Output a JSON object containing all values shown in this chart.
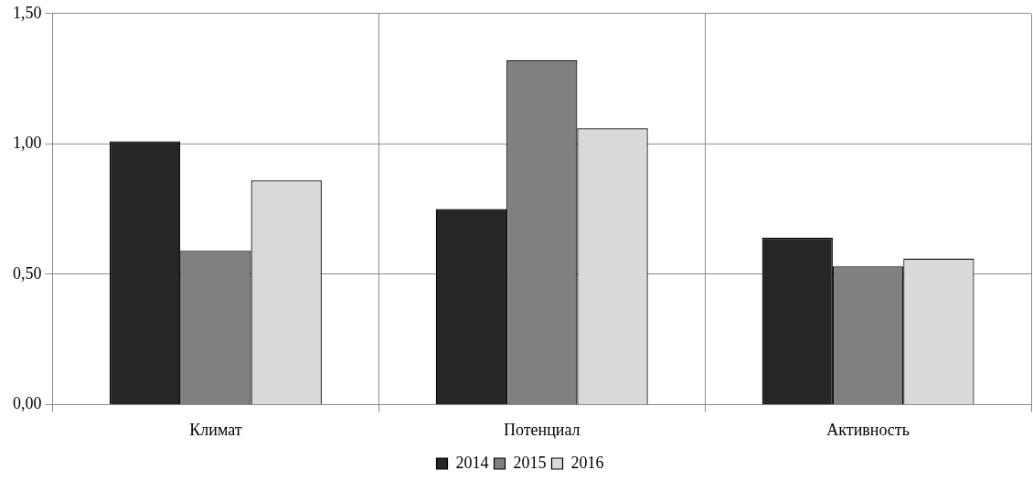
{
  "chart_data": {
    "type": "bar",
    "categories": [
      "Климат",
      "Потенциал",
      "Активность"
    ],
    "series": [
      {
        "name": "2014",
        "color": "#262626",
        "values": [
          1.01,
          0.75,
          0.64
        ]
      },
      {
        "name": "2015",
        "color": "#808080",
        "values": [
          0.59,
          1.32,
          0.53
        ]
      },
      {
        "name": "2016",
        "color": "#d9d9d9",
        "values": [
          0.86,
          1.06,
          0.56
        ]
      }
    ],
    "ylim": [
      0,
      1.5
    ],
    "yticks": [
      {
        "value": 0,
        "label": "0,00"
      },
      {
        "value": 0.5,
        "label": "0,50"
      },
      {
        "value": 1,
        "label": "1,00"
      },
      {
        "value": 1.5,
        "label": "1,50"
      }
    ],
    "grid": true,
    "legend": "bottom"
  }
}
